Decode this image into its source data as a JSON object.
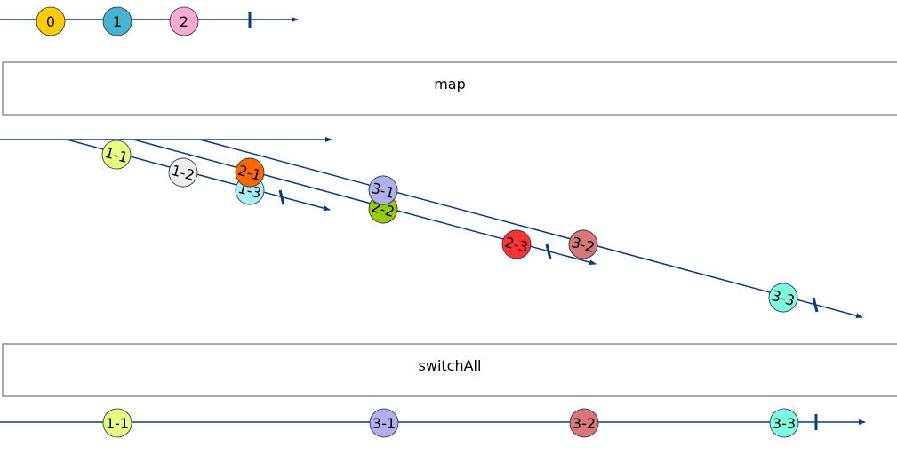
{
  "colors": {
    "line": "#0b3a82",
    "box_border": "#555555",
    "marble_border": "#1f2d3d"
  },
  "source": {
    "marbles": [
      {
        "label": "0",
        "color": "#ffcc00"
      },
      {
        "label": "1",
        "color": "#45b5d0"
      },
      {
        "label": "2",
        "color": "#ffaad2"
      }
    ]
  },
  "operators": {
    "map": "map",
    "switch_all": "switchAll"
  },
  "inner": [
    {
      "marbles": [
        {
          "label": "1-1",
          "color": "#e6ff80"
        },
        {
          "label": "1-2",
          "color": "#eeeeee"
        },
        {
          "label": "1-3",
          "color": "#a8eeff"
        }
      ]
    },
    {
      "marbles": [
        {
          "label": "2-1",
          "color": "#ff6600"
        },
        {
          "label": "2-2",
          "color": "#99cc00"
        },
        {
          "label": "2-3",
          "color": "#ff3333"
        }
      ]
    },
    {
      "marbles": [
        {
          "label": "3-1",
          "color": "#b0b0ee"
        },
        {
          "label": "3-2",
          "color": "#d77777"
        },
        {
          "label": "3-3",
          "color": "#7fffdf"
        }
      ]
    }
  ],
  "result": {
    "marbles": [
      {
        "label": "1-1",
        "color": "#e6ff80"
      },
      {
        "label": "3-1",
        "color": "#b0b0ee"
      },
      {
        "label": "3-2",
        "color": "#d77777"
      },
      {
        "label": "3-3",
        "color": "#7fffdf"
      }
    ]
  }
}
